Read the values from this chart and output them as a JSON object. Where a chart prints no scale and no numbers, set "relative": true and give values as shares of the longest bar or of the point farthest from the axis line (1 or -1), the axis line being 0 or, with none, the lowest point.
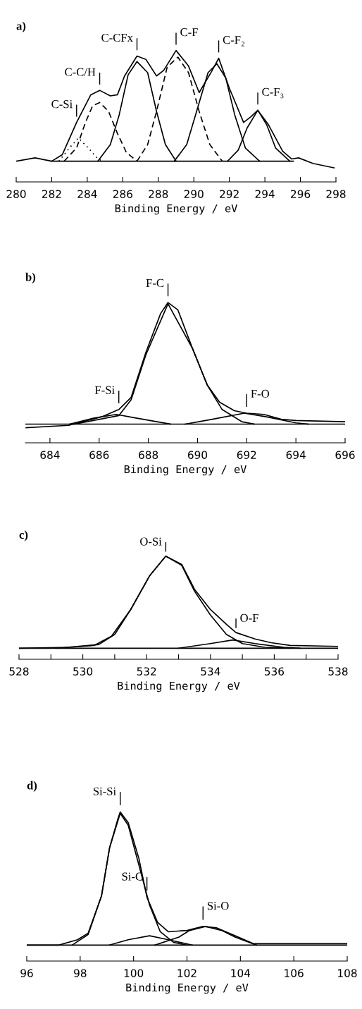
{
  "chart_data": [
    {
      "type": "line",
      "title": "a)",
      "xlabel": "Binding Energy / eV",
      "relative": true,
      "xlim": [
        280,
        298
      ],
      "xticks": [
        280,
        282,
        284,
        286,
        288,
        290,
        292,
        294,
        296,
        298
      ],
      "series": [
        {
          "color": "#000000",
          "x": [
            280,
            281.06,
            282.0,
            282.6,
            283.4,
            284.2,
            284.7,
            285.3,
            285.7,
            286.1,
            286.8,
            287.3,
            287.9,
            288.3,
            289.0,
            289.7,
            290.3,
            291.0,
            291.4,
            292.0,
            292.8,
            293.2,
            293.6,
            294.2,
            295.0,
            295.5,
            295.9,
            296.7,
            297.9
          ],
          "values": [
            0.0,
            0.03,
            0.0,
            0.06,
            0.35,
            0.6,
            0.64,
            0.59,
            0.6,
            0.77,
            0.95,
            0.92,
            0.77,
            0.82,
            1.0,
            0.86,
            0.62,
            0.81,
            0.93,
            0.66,
            0.35,
            0.4,
            0.46,
            0.33,
            0.09,
            0.02,
            0.03,
            -0.02,
            -0.06
          ]
        },
        {
          "color": "#000000",
          "line_style": "dotted",
          "x": [
            282.4,
            283.0,
            283.5,
            284.0,
            284.6,
            284.9
          ],
          "values": [
            0,
            0.12,
            0.21,
            0.13,
            0.02,
            0
          ]
        },
        {
          "color": "#000000",
          "line_style": "dashed",
          "x": [
            282.7,
            283.4,
            283.9,
            284.3,
            284.7,
            285.2,
            285.7,
            286.2,
            286.8
          ],
          "values": [
            0,
            0.12,
            0.35,
            0.5,
            0.53,
            0.45,
            0.25,
            0.08,
            0
          ]
        },
        {
          "color": "#000000",
          "line_style": "solid",
          "x": [
            284.6,
            285.3,
            285.8,
            286.3,
            286.8,
            287.4,
            287.9,
            288.4,
            289.0
          ],
          "values": [
            0,
            0.15,
            0.42,
            0.78,
            0.9,
            0.8,
            0.45,
            0.15,
            0
          ]
        },
        {
          "color": "#000000",
          "line_style": "dashed",
          "x": [
            286.8,
            287.4,
            287.9,
            288.5,
            289.1,
            289.7,
            290.3,
            290.9,
            291.6
          ],
          "values": [
            0,
            0.15,
            0.45,
            0.85,
            0.94,
            0.8,
            0.45,
            0.15,
            0
          ]
        },
        {
          "color": "#000000",
          "line_style": "solid",
          "x": [
            288.9,
            289.6,
            290.1,
            290.8,
            291.3,
            291.8,
            292.3,
            292.9,
            293.7
          ],
          "values": [
            0,
            0.15,
            0.42,
            0.8,
            0.88,
            0.75,
            0.42,
            0.12,
            0
          ]
        },
        {
          "color": "#000000",
          "line_style": "solid",
          "x": [
            291.9,
            292.5,
            293.0,
            293.6,
            294.1,
            294.6,
            295.4
          ],
          "values": [
            0,
            0.1,
            0.3,
            0.46,
            0.33,
            0.12,
            0
          ]
        },
        {
          "color": "#000000",
          "line_style": "solid",
          "x": [
            282.0,
            295.6
          ],
          "values": [
            0,
            0
          ]
        }
      ],
      "annotations": [
        {
          "text": "C-Si",
          "x": 283.4,
          "y": 0.35
        },
        {
          "text": "C-C/H",
          "x": 284.7,
          "y": 0.64
        },
        {
          "text": "C-CFx",
          "x": 286.8,
          "y": 0.95
        },
        {
          "text": "C-F",
          "x": 289.0,
          "y": 1.0
        },
        {
          "text": "C-F₂",
          "x": 291.4,
          "y": 0.93
        },
        {
          "text": "C-F₃",
          "x": 293.6,
          "y": 0.46
        }
      ]
    },
    {
      "type": "line",
      "title": "b)",
      "xlabel": "Binding Energy / eV",
      "relative": true,
      "xlim": [
        683,
        696
      ],
      "xticks": [
        684,
        686,
        688,
        690,
        692,
        694,
        696
      ],
      "series": [
        {
          "color": "#000000",
          "x": [
            683.03,
            684.76,
            686.1,
            686.8,
            687.3,
            687.9,
            688.5,
            688.8,
            689.2,
            689.8,
            690.4,
            690.9,
            691.5,
            692.0,
            692.7,
            693.4,
            694.0,
            696.0
          ],
          "values": [
            -0.03,
            -0.01,
            0.06,
            0.12,
            0.22,
            0.59,
            0.91,
            1.0,
            0.94,
            0.62,
            0.32,
            0.18,
            0.11,
            0.09,
            0.08,
            0.04,
            0.03,
            0.02
          ]
        },
        {
          "color": "#000000",
          "line_style": "solid",
          "x": [
            685.0,
            686.8,
            687.3,
            687.9,
            688.8,
            689.8,
            690.4,
            691.0,
            691.8,
            692.3
          ],
          "values": [
            0,
            0.07,
            0.2,
            0.57,
            0.99,
            0.62,
            0.32,
            0.12,
            0.02,
            0
          ]
        },
        {
          "color": "#000000",
          "line_style": "solid",
          "x": [
            684.8,
            685.8,
            686.7,
            687.5,
            688.9
          ],
          "values": [
            0,
            0.05,
            0.08,
            0.05,
            0
          ]
        },
        {
          "color": "#000000",
          "line_style": "solid",
          "x": [
            689.5,
            690.6,
            691.9,
            692.8,
            694.0,
            694.5
          ],
          "values": [
            0,
            0.04,
            0.09,
            0.06,
            0.01,
            0
          ]
        },
        {
          "color": "#000000",
          "line_style": "solid",
          "x": [
            683.0,
            696.0
          ],
          "values": [
            0,
            0
          ]
        }
      ],
      "annotations": [
        {
          "text": "F-C",
          "x": 688.8,
          "y": 1.0
        },
        {
          "text": "F-Si",
          "x": 686.8,
          "y": 0.12
        },
        {
          "text": "F-O",
          "x": 692.0,
          "y": 0.09
        }
      ]
    },
    {
      "type": "line",
      "title": "c)",
      "xlabel": "Binding Energy / eV",
      "relative": true,
      "xlim": [
        528,
        538
      ],
      "xticks": [
        528,
        {
          "value": 529,
          "label": null
        },
        530,
        {
          "value": 531,
          "label": null
        },
        532,
        {
          "value": 533,
          "label": null
        },
        534,
        {
          "value": 535,
          "label": null
        },
        536,
        {
          "value": 537,
          "label": null
        },
        538
      ],
      "series": [
        {
          "color": "#000000",
          "x": [
            528,
            529.6,
            530.35,
            530.9,
            531.5,
            532.1,
            532.6,
            533.1,
            533.5,
            534.0,
            534.5,
            534.8,
            535.4,
            535.9,
            536.5,
            538
          ],
          "values": [
            0,
            0.01,
            0.03,
            0.13,
            0.42,
            0.79,
            1.0,
            0.91,
            0.64,
            0.42,
            0.26,
            0.17,
            0.1,
            0.06,
            0.03,
            0.02
          ]
        },
        {
          "color": "#000000",
          "line_style": "solid",
          "x": [
            529.2,
            530.5,
            531.0,
            531.5,
            532.1,
            532.6,
            533.1,
            533.5,
            534.0,
            534.5,
            535.0,
            535.7,
            536.5
          ],
          "values": [
            0,
            0.04,
            0.15,
            0.42,
            0.79,
            1.0,
            0.9,
            0.62,
            0.36,
            0.15,
            0.05,
            0.01,
            0
          ]
        },
        {
          "color": "#000000",
          "line_style": "solid",
          "x": [
            533.0,
            534.0,
            534.7,
            535.4,
            536.3,
            536.8
          ],
          "values": [
            0,
            0.05,
            0.09,
            0.05,
            0.01,
            0
          ]
        },
        {
          "color": "#000000",
          "line_style": "solid",
          "x": [
            528,
            538
          ],
          "values": [
            0,
            0
          ]
        }
      ],
      "annotations": [
        {
          "text": "O-Si",
          "x": 532.6,
          "y": 1.0
        },
        {
          "text": "O-F",
          "x": 534.8,
          "y": 0.17
        }
      ]
    },
    {
      "type": "line",
      "title": "d)",
      "xlabel": "Binding Energy / eV",
      "relative": true,
      "xlim": [
        96,
        108
      ],
      "xticks": [
        96,
        98,
        100,
        102,
        104,
        106,
        108
      ],
      "series": [
        {
          "color": "#000000",
          "x": [
            96,
            97.2,
            97.9,
            98.3,
            98.8,
            99.1,
            99.4,
            99.5,
            99.8,
            100.2,
            100.5,
            100.9,
            101.3,
            102.0,
            102.6,
            103.1,
            103.8,
            104.5,
            106.0,
            108
          ],
          "values": [
            0,
            0,
            0.04,
            0.09,
            0.37,
            0.73,
            0.94,
            1.0,
            0.92,
            0.65,
            0.36,
            0.17,
            0.1,
            0.11,
            0.14,
            0.13,
            0.07,
            0.01,
            0.01,
            0.01
          ]
        },
        {
          "color": "#000000",
          "line_style": "solid",
          "x": [
            97.7,
            98.3,
            98.8,
            99.1,
            99.5,
            99.8,
            100.2,
            100.6,
            101.0,
            101.5,
            102.0
          ],
          "values": [
            0,
            0.08,
            0.37,
            0.73,
            0.99,
            0.9,
            0.6,
            0.3,
            0.1,
            0.02,
            0
          ]
        },
        {
          "color": "#000000",
          "line_style": "solid",
          "x": [
            99.1,
            99.8,
            100.6,
            101.3,
            102.2
          ],
          "values": [
            0,
            0.04,
            0.07,
            0.04,
            0
          ]
        },
        {
          "color": "#000000",
          "line_style": "solid",
          "x": [
            100.8,
            101.7,
            102.1,
            102.7,
            103.3,
            103.8,
            104.6
          ],
          "values": [
            0,
            0.06,
            0.11,
            0.14,
            0.11,
            0.06,
            0
          ]
        },
        {
          "color": "#000000",
          "line_style": "solid",
          "x": [
            96,
            108
          ],
          "values": [
            0,
            0
          ]
        }
      ],
      "annotations": [
        {
          "text": "Si-Si",
          "x": 99.5,
          "y": 1.0
        },
        {
          "text": "Si-C",
          "x": 100.5,
          "y": 0.36
        },
        {
          "text": "Si-O",
          "x": 102.6,
          "y": 0.14
        }
      ]
    }
  ]
}
